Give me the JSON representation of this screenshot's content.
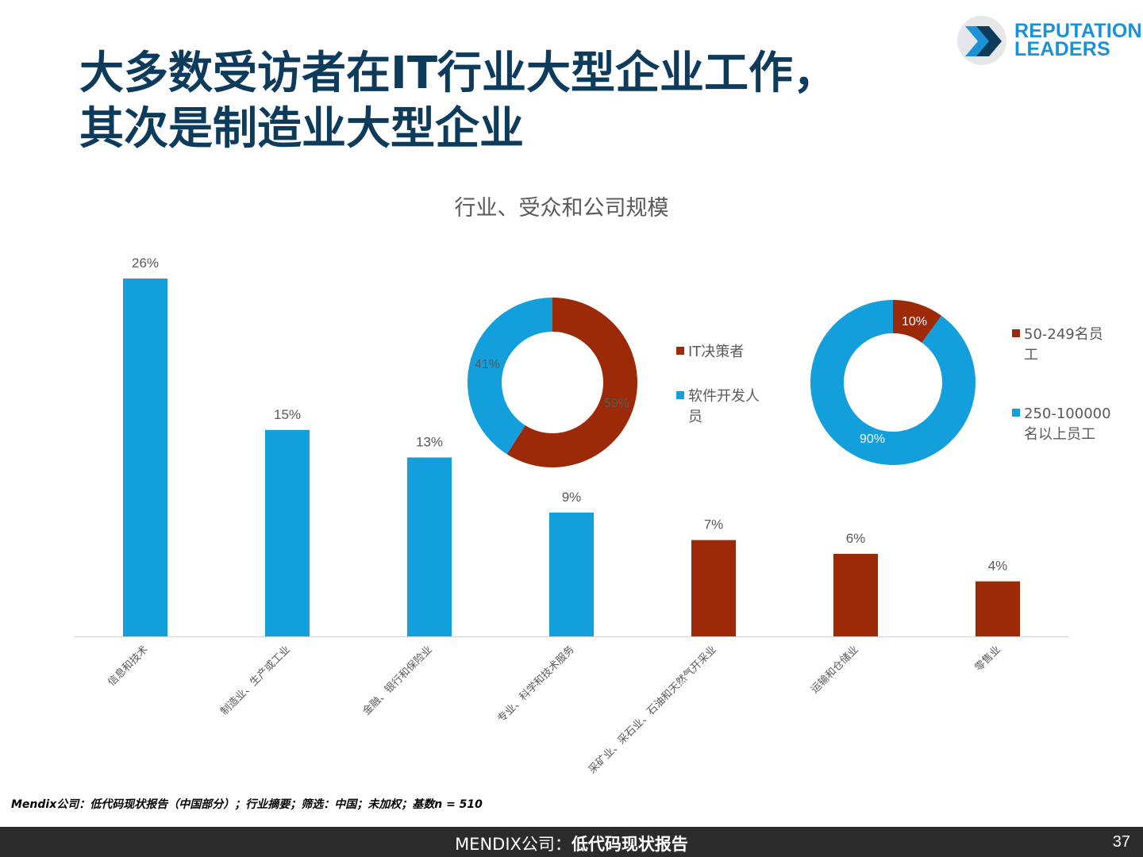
{
  "slide": {
    "title_line1": "大多数受访者在IT行业大型企业工作，",
    "title_line2": "其次是制造业大型企业",
    "logo_text_line1": "REPUTATION",
    "logo_text_line2": "LEADERS",
    "logo_icon": "chevron-right-icon",
    "footnote": "Mendix公司：低代码现状报告（中国部分）；行业摘要；筛选：中国；未加权；基数n = 510",
    "footer_part1": "MENDIX公司：",
    "footer_part2": "低代码现状报告",
    "page_number": "37"
  },
  "colors": {
    "blue": "#139fdb",
    "red": "#9c2a09",
    "title": "#0c3b5c",
    "axis": "#d9d9d9",
    "label": "#595959"
  },
  "chart_data": [
    {
      "type": "bar",
      "title": "行业、受众和公司规模",
      "categories": [
        "信息和技术",
        "制造业、生产或工业",
        "金融、银行和保险业",
        "专业、科学和技术服务",
        "采矿业、采石业、石油和天然气开采业",
        "运输和仓储业",
        "零售业"
      ],
      "values": [
        26,
        15,
        13,
        9,
        7,
        6,
        4
      ],
      "value_labels": [
        "26%",
        "15%",
        "13%",
        "9%",
        "7%",
        "6%",
        "4%"
      ],
      "bar_colors": [
        "blue",
        "blue",
        "blue",
        "blue",
        "red",
        "red",
        "red"
      ],
      "unit": "%"
    },
    {
      "type": "pie",
      "labels": [
        "IT决策者",
        "软件开发人员"
      ],
      "values": [
        59,
        41
      ],
      "value_labels": [
        "59%",
        "41%"
      ],
      "colors": [
        "red",
        "blue"
      ],
      "legend_lines": [
        [
          "IT决策者"
        ],
        [
          "软件开发人",
          "员"
        ]
      ]
    },
    {
      "type": "pie",
      "labels": [
        "50-249名员工",
        "250-100000名以上员工"
      ],
      "values": [
        10,
        90
      ],
      "value_labels": [
        "10%",
        "90%"
      ],
      "colors": [
        "red",
        "blue"
      ],
      "legend_lines": [
        [
          "50-249名员",
          "工"
        ],
        [
          "250-100000",
          "名以上员工"
        ]
      ]
    }
  ]
}
